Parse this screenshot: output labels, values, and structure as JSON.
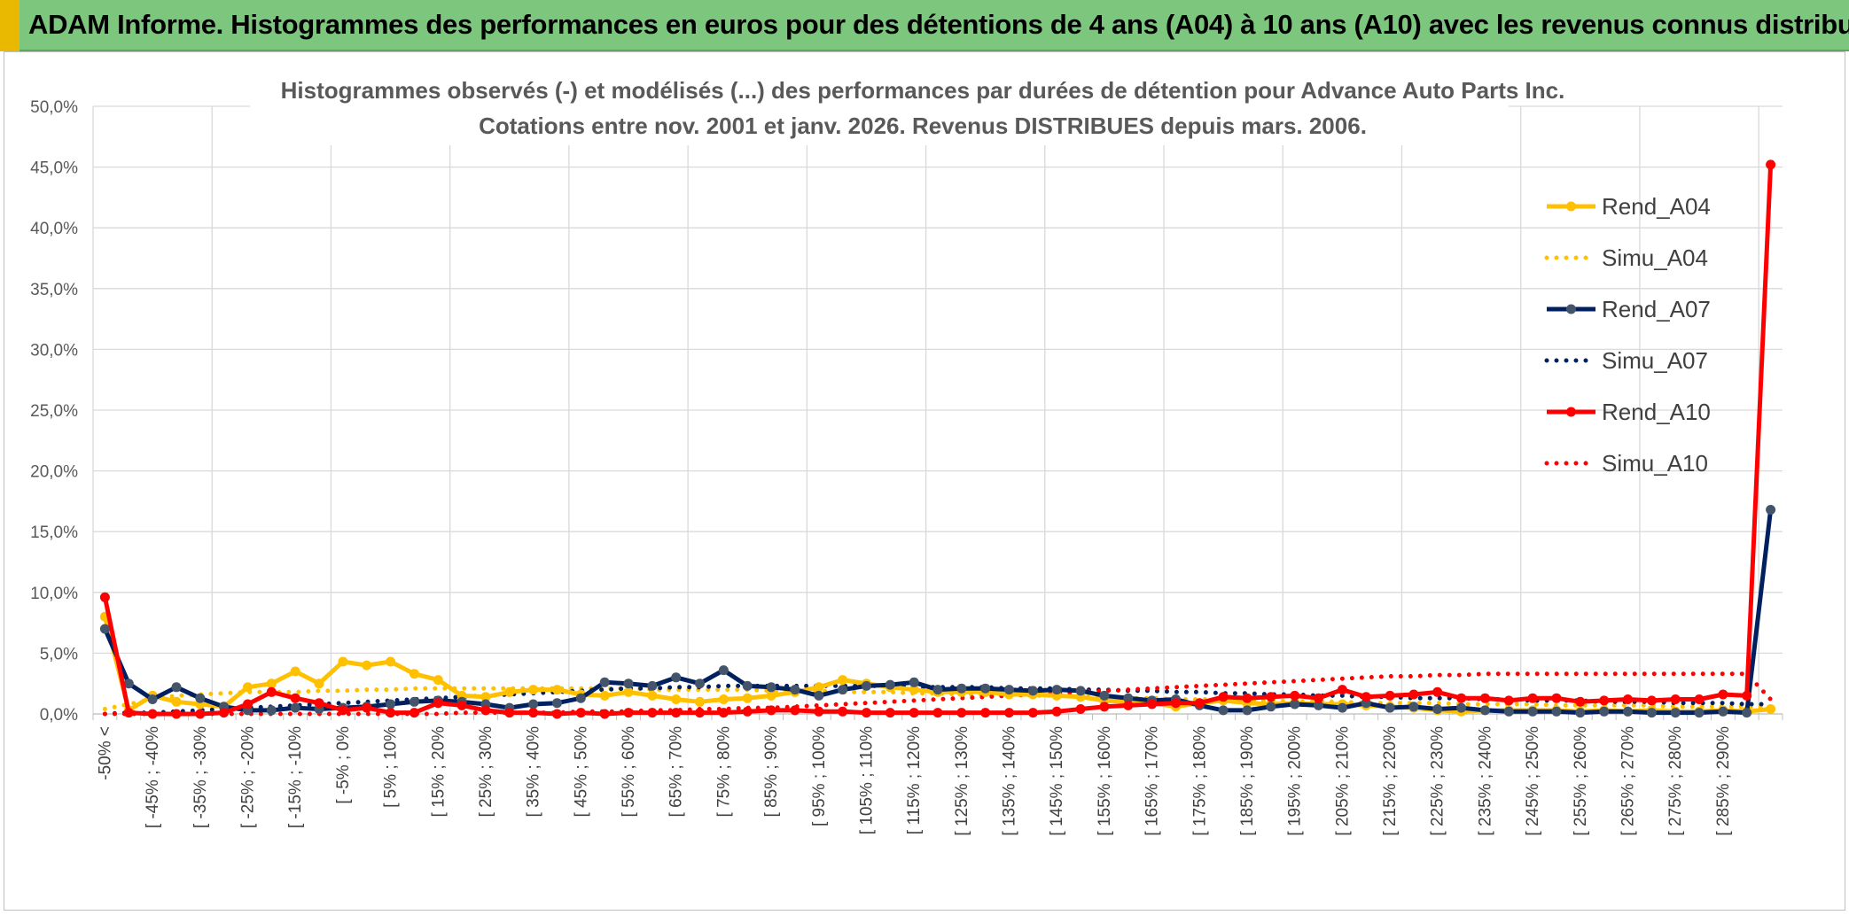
{
  "banner": {
    "title": "ADAM Informe. Histogrammes des performances en euros pour des détentions de 4 ans (A04) à 10 ans (A10) avec les revenus connus distribués"
  },
  "colors": {
    "a04": "#ffc000",
    "a07": "#002060",
    "a10": "#ff0000",
    "grid": "#d9d9d9",
    "banner": "#7dc67d"
  },
  "chart_data": {
    "type": "line",
    "title": "Histogrammes observés (-) et modélisés (...) des performances par durées de détention pour Advance Auto Parts Inc.",
    "subtitle": "Cotations entre nov. 2001 et janv. 2026. Revenus DISTRIBUES depuis mars. 2006.",
    "xlabel": "",
    "ylabel": "",
    "ylim": [
      0,
      50
    ],
    "yticks": [
      "0,0%",
      "5,0%",
      "10,0%",
      "15,0%",
      "20,0%",
      "25,0%",
      "30,0%",
      "35,0%",
      "40,0%",
      "45,0%",
      "50,0%"
    ],
    "grid": true,
    "legend_position": "right",
    "categories": [
      "-50% <",
      "[ -50% ; -45%",
      "[ -45% ; -40%",
      "[ -40% ; -35%",
      "[ -35% ; -30%",
      "[ -30% ; -25%",
      "[ -25% ; -20%",
      "[ -20% ; -15%",
      "[ -15% ; -10%",
      "[ -10% ; -5%",
      "[ -5% ; 0%",
      "[ 0% ; 5%",
      "[ 5% ; 10%",
      "[ 10% ; 15%",
      "[ 15% ; 20%",
      "[ 20% ; 25%",
      "[ 25% ; 30%",
      "[ 30% ; 35%",
      "[ 35% ; 40%",
      "[ 40% ; 45%",
      "[ 45% ; 50%",
      "[ 50% ; 55%",
      "[ 55% ; 60%",
      "[ 60% ; 65%",
      "[ 65% ; 70%",
      "[ 70% ; 75%",
      "[ 75% ; 80%",
      "[ 80% ; 85%",
      "[ 85% ; 90%",
      "[ 90% ; 95%",
      "[ 95% ; 100%",
      "[ 100% ; 105%",
      "[ 105% ; 110%",
      "[ 110% ; 115%",
      "[ 115% ; 120%",
      "[ 120% ; 125%",
      "[ 125% ; 130%",
      "[ 130% ; 135%",
      "[ 135% ; 140%",
      "[ 140% ; 145%",
      "[ 145% ; 150%",
      "[ 150% ; 155%",
      "[ 155% ; 160%",
      "[ 160% ; 165%",
      "[ 165% ; 170%",
      "[ 170% ; 175%",
      "[ 175% ; 180%",
      "[ 180% ; 185%",
      "[ 185% ; 190%",
      "[ 190% ; 195%",
      "[ 195% ; 200%",
      "[ 200% ; 205%",
      "[ 205% ; 210%",
      "[ 210% ; 215%",
      "[ 215% ; 220%",
      "[ 220% ; 225%",
      "[ 225% ; 230%",
      "[ 230% ; 235%",
      "[ 235% ; 240%",
      "[ 240% ; 245%",
      "[ 245% ; 250%",
      "[ 250% ; 255%",
      "[ 255% ; 260%",
      "[ 260% ; 265%",
      "[ 265% ; 270%",
      "[ 270% ; 275%",
      "[ 275% ; 280%",
      "[ 280% ; 285%",
      "[ 285% ; 290%",
      "[ 290% ; 295%",
      "295% <"
    ],
    "visible_tick_labels": [
      "-50% <",
      "[ -45% ; -40%",
      "[ -35% ; -30%",
      "[ -25% ; -20%",
      "[ -15% ; -10%",
      "[ -5% ; 0%",
      "[ 5% ; 10%",
      "[ 15% ; 20%",
      "[ 25% ; 30%",
      "[ 35% ; 40%",
      "[ 45% ; 50%",
      "[ 55% ; 60%",
      "[ 65% ; 70%",
      "[ 75% ; 80%",
      "[ 85% ; 90%",
      "[ 95% ; 100%",
      "[ 105% ; 110%",
      "[ 115% ; 120%",
      "[ 125% ; 130%",
      "[ 135% ; 140%",
      "[ 145% ; 150%",
      "[ 155% ; 160%",
      "[ 165% ; 170%",
      "[ 175% ; 180%",
      "[ 185% ; 190%",
      "[ 195% ; 200%",
      "[ 205% ; 210%",
      "[ 215% ; 220%",
      "[ 225% ; 230%",
      "[ 235% ; 240%",
      "[ 245% ; 250%",
      "[ 255% ; 260%",
      "[ 265% ; 270%",
      "[ 275% ; 280%",
      "[ 285% ; 290%"
    ],
    "series": [
      {
        "name": "Rend_A04",
        "style": "solid",
        "color": "#ffc000",
        "values": [
          8.0,
          0.3,
          1.5,
          1.0,
          0.8,
          0.6,
          2.2,
          2.5,
          3.5,
          2.5,
          4.3,
          4.0,
          4.3,
          3.3,
          2.8,
          1.5,
          1.4,
          1.8,
          2.0,
          2.0,
          1.6,
          1.5,
          1.8,
          1.5,
          1.2,
          1.0,
          1.2,
          1.3,
          1.5,
          1.8,
          2.2,
          2.8,
          2.5,
          2.2,
          2.0,
          1.8,
          1.8,
          1.8,
          1.6,
          1.6,
          1.5,
          1.4,
          1.1,
          1.0,
          0.9,
          0.6,
          0.9,
          1.1,
          0.9,
          0.8,
          0.9,
          0.8,
          0.8,
          0.7,
          0.6,
          0.5,
          0.3,
          0.2,
          0.3,
          0.3,
          0.3,
          0.3,
          0.2,
          0.3,
          0.2,
          0.3,
          0.2,
          0.2,
          0.3,
          0.2,
          0.4
        ]
      },
      {
        "name": "Simu_A04",
        "style": "dotted",
        "color": "#ffc000",
        "values": [
          0.4,
          0.8,
          1.2,
          1.5,
          1.6,
          1.7,
          1.8,
          1.8,
          1.8,
          1.9,
          1.9,
          2.0,
          2.0,
          2.1,
          2.1,
          2.1,
          2.1,
          2.1,
          2.1,
          2.1,
          2.1,
          2.1,
          2.1,
          2.0,
          2.0,
          2.0,
          2.0,
          2.0,
          1.9,
          1.9,
          1.9,
          1.8,
          1.8,
          1.8,
          1.7,
          1.7,
          1.6,
          1.6,
          1.6,
          1.5,
          1.5,
          1.4,
          1.4,
          1.3,
          1.3,
          1.2,
          1.2,
          1.2,
          1.1,
          1.1,
          1.0,
          1.0,
          1.0,
          0.9,
          0.9,
          0.9,
          0.9,
          0.8,
          0.8,
          0.8,
          0.8,
          0.7,
          0.7,
          0.7,
          0.7,
          0.7,
          0.6,
          0.6,
          0.6,
          0.6,
          0.6
        ]
      },
      {
        "name": "Rend_A07",
        "style": "solid",
        "color": "#002060",
        "values": [
          7.0,
          2.5,
          1.2,
          2.2,
          1.3,
          0.6,
          0.3,
          0.3,
          0.5,
          0.4,
          0.5,
          0.6,
          0.8,
          1.0,
          1.1,
          1.0,
          0.8,
          0.5,
          0.8,
          0.9,
          1.3,
          2.6,
          2.5,
          2.3,
          3.0,
          2.5,
          3.6,
          2.3,
          2.2,
          2.0,
          1.5,
          2.0,
          2.3,
          2.4,
          2.6,
          2.0,
          2.1,
          2.1,
          2.0,
          1.9,
          2.0,
          1.9,
          1.5,
          1.3,
          1.1,
          1.2,
          0.7,
          0.3,
          0.3,
          0.6,
          0.8,
          0.7,
          0.5,
          0.9,
          0.5,
          0.6,
          0.4,
          0.5,
          0.3,
          0.2,
          0.2,
          0.2,
          0.1,
          0.2,
          0.2,
          0.1,
          0.1,
          0.1,
          0.2,
          0.1,
          16.8
        ]
      },
      {
        "name": "Simu_A07",
        "style": "dotted",
        "color": "#002060",
        "values": [
          0.0,
          0.1,
          0.1,
          0.2,
          0.3,
          0.4,
          0.5,
          0.6,
          0.7,
          0.8,
          0.9,
          1.0,
          1.1,
          1.2,
          1.3,
          1.4,
          1.5,
          1.6,
          1.7,
          1.8,
          1.9,
          2.0,
          2.1,
          2.1,
          2.2,
          2.2,
          2.3,
          2.3,
          2.3,
          2.3,
          2.3,
          2.3,
          2.3,
          2.3,
          2.2,
          2.2,
          2.2,
          2.2,
          2.1,
          2.1,
          2.1,
          2.0,
          2.0,
          1.9,
          1.9,
          1.8,
          1.8,
          1.7,
          1.7,
          1.6,
          1.6,
          1.5,
          1.5,
          1.4,
          1.4,
          1.3,
          1.3,
          1.3,
          1.2,
          1.2,
          1.1,
          1.1,
          1.1,
          1.0,
          1.0,
          1.0,
          0.9,
          0.9,
          0.9,
          0.8,
          0.8
        ]
      },
      {
        "name": "Rend_A10",
        "style": "solid",
        "color": "#ff0000",
        "values": [
          9.6,
          0.1,
          0.0,
          0.0,
          0.0,
          0.1,
          0.8,
          1.8,
          1.3,
          0.9,
          0.3,
          0.5,
          0.1,
          0.1,
          0.9,
          0.7,
          0.3,
          0.1,
          0.1,
          0.0,
          0.1,
          0.0,
          0.1,
          0.1,
          0.1,
          0.1,
          0.1,
          0.2,
          0.3,
          0.3,
          0.2,
          0.2,
          0.1,
          0.1,
          0.1,
          0.1,
          0.1,
          0.1,
          0.1,
          0.1,
          0.2,
          0.4,
          0.6,
          0.7,
          0.8,
          0.9,
          0.9,
          1.4,
          1.3,
          1.4,
          1.5,
          1.3,
          2.0,
          1.4,
          1.5,
          1.6,
          1.8,
          1.3,
          1.3,
          1.1,
          1.3,
          1.3,
          1.0,
          1.1,
          1.2,
          1.1,
          1.2,
          1.2,
          1.6,
          1.5,
          45.2
        ]
      },
      {
        "name": "Simu_A10",
        "style": "dotted",
        "color": "#ff0000",
        "values": [
          0.0,
          0.0,
          0.0,
          0.0,
          0.0,
          0.0,
          0.0,
          0.0,
          0.0,
          0.0,
          0.0,
          0.0,
          0.0,
          0.0,
          0.0,
          0.1,
          0.1,
          0.1,
          0.1,
          0.1,
          0.2,
          0.2,
          0.2,
          0.3,
          0.3,
          0.4,
          0.4,
          0.5,
          0.5,
          0.6,
          0.7,
          0.8,
          0.9,
          1.0,
          1.1,
          1.2,
          1.3,
          1.4,
          1.5,
          1.6,
          1.7,
          1.8,
          1.9,
          2.0,
          2.1,
          2.2,
          2.3,
          2.4,
          2.5,
          2.6,
          2.7,
          2.8,
          2.9,
          3.0,
          3.1,
          3.1,
          3.2,
          3.2,
          3.3,
          3.3,
          3.3,
          3.3,
          3.3,
          3.3,
          3.3,
          3.3,
          3.3,
          3.3,
          3.3,
          3.3,
          1.2
        ]
      }
    ]
  }
}
